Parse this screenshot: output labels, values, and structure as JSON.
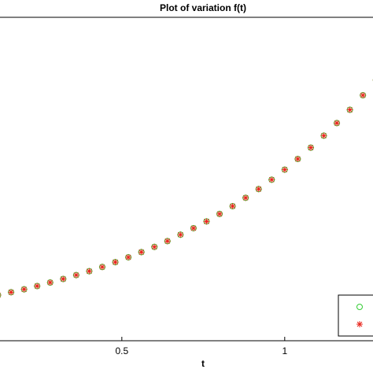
{
  "chart_data": {
    "type": "scatter",
    "title": "Plot of variation f(t)",
    "x_label": "t",
    "x": [
      0.12,
      0.16,
      0.2,
      0.24,
      0.28,
      0.32,
      0.36,
      0.4,
      0.44,
      0.48,
      0.52,
      0.56,
      0.6,
      0.64,
      0.68,
      0.72,
      0.76,
      0.8,
      0.84,
      0.88,
      0.92,
      0.96,
      1.0,
      1.04,
      1.08,
      1.12,
      1.16,
      1.2,
      1.24,
      1.28
    ],
    "series": [
      {
        "color": "#33cc33",
        "marker": "circle",
        "values": [
          0.141,
          0.15,
          0.159,
          0.169,
          0.18,
          0.191,
          0.203,
          0.215,
          0.228,
          0.243,
          0.258,
          0.274,
          0.29,
          0.308,
          0.328,
          0.348,
          0.369,
          0.392,
          0.416,
          0.442,
          0.469,
          0.498,
          0.529,
          0.562,
          0.597,
          0.634,
          0.673,
          0.714,
          0.759,
          0.806
        ]
      },
      {
        "color": "#e8261c",
        "marker": "star",
        "values": [
          0.141,
          0.15,
          0.159,
          0.169,
          0.18,
          0.191,
          0.203,
          0.215,
          0.228,
          0.243,
          0.258,
          0.274,
          0.29,
          0.308,
          0.328,
          0.348,
          0.369,
          0.392,
          0.416,
          0.442,
          0.469,
          0.498,
          0.529,
          0.562,
          0.597,
          0.634,
          0.673,
          0.714,
          0.759,
          0.806
        ]
      }
    ],
    "xlim": [
      0.126,
      1.271
    ],
    "ylim": [
      0,
      1
    ],
    "xticks": [
      0.5,
      1
    ],
    "legend": "lower right"
  }
}
